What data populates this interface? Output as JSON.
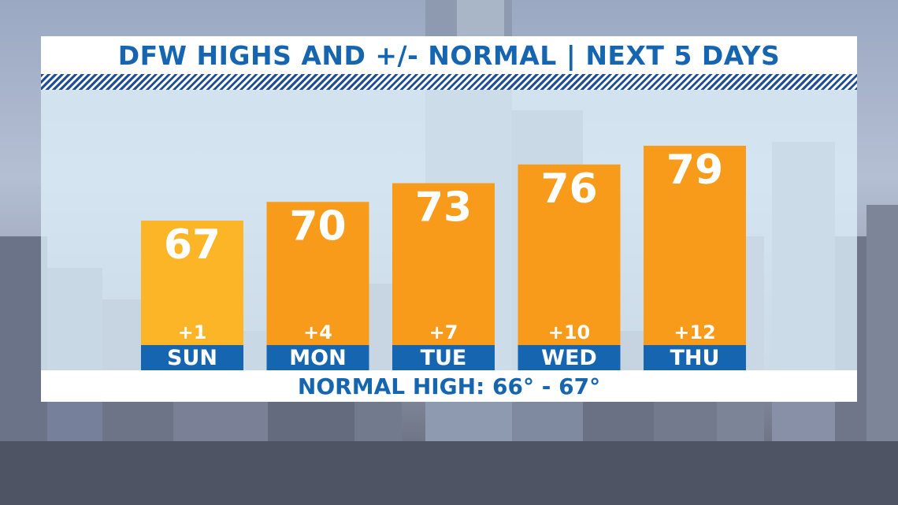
{
  "header": {
    "title": "DFW HIGHS AND +/- NORMAL | NEXT 5 DAYS"
  },
  "footer": {
    "normal_high_label": "NORMAL HIGH: 66° - 67°"
  },
  "colors": {
    "title_text": "#1565b0",
    "bar_light": "#fbb526",
    "bar_dark": "#f89b1a",
    "day_band": "#1565b0"
  },
  "chart_data": {
    "type": "bar",
    "categories": [
      "SUN",
      "MON",
      "TUE",
      "WED",
      "THU"
    ],
    "values": [
      67,
      70,
      73,
      76,
      79
    ],
    "value_labels": [
      "67",
      "70",
      "73",
      "76",
      "79"
    ],
    "anomaly_labels": [
      "+1",
      "+4",
      "+7",
      "+10",
      "+12"
    ],
    "anomalies": [
      1,
      4,
      7,
      10,
      12
    ],
    "title": "DFW HIGHS AND +/- NORMAL | NEXT 5 DAYS",
    "xlabel": "",
    "ylabel": "",
    "grid": false,
    "legend": "none"
  }
}
